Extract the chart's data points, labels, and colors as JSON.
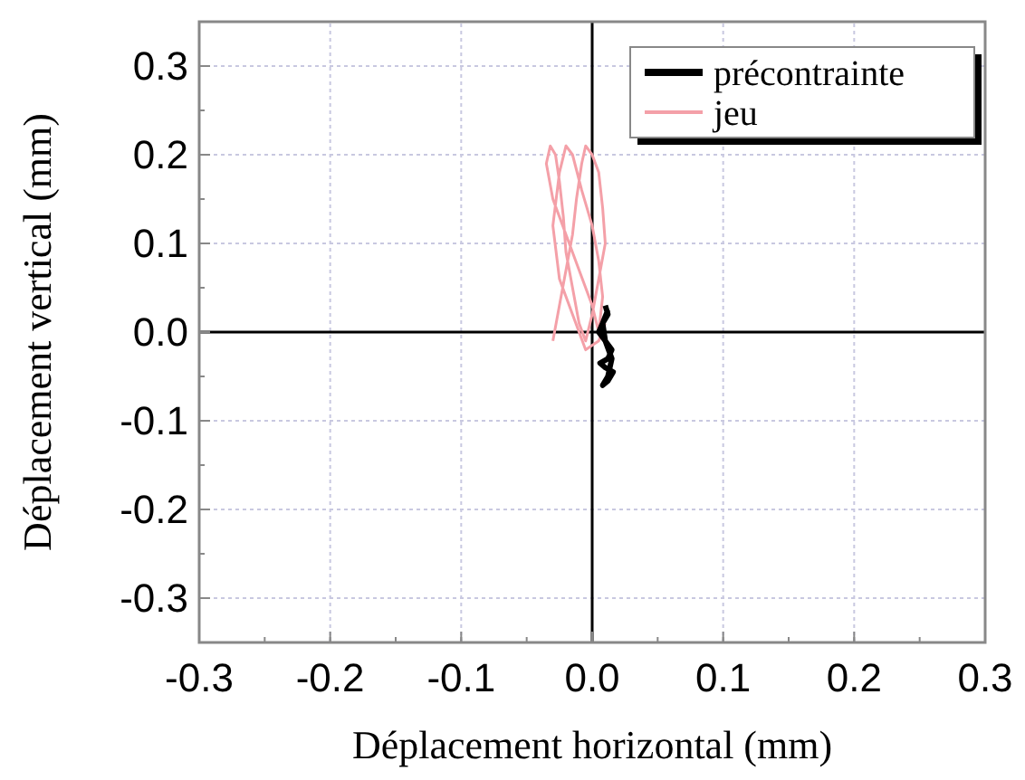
{
  "chart_data": {
    "type": "line",
    "xlabel": "Déplacement horizontal (mm)",
    "ylabel": "Déplacement vertical (mm)",
    "xlim": [
      -0.3,
      0.3
    ],
    "ylim": [
      -0.35,
      0.35
    ],
    "xticks": [
      {
        "value": -0.3,
        "label": "-0.3"
      },
      {
        "value": -0.2,
        "label": "-0.2"
      },
      {
        "value": -0.1,
        "label": "-0.1"
      },
      {
        "value": 0,
        "label": "0.0"
      },
      {
        "value": 0.1,
        "label": "0.1"
      },
      {
        "value": 0.2,
        "label": "0.2"
      },
      {
        "value": 0.3,
        "label": "0.3"
      }
    ],
    "yticks": [
      {
        "value": -0.3,
        "label": "-0.3"
      },
      {
        "value": -0.2,
        "label": "-0.2"
      },
      {
        "value": -0.1,
        "label": "-0.1"
      },
      {
        "value": 0,
        "label": "0.0"
      },
      {
        "value": 0.1,
        "label": "0.1"
      },
      {
        "value": 0.2,
        "label": "0.2"
      },
      {
        "value": 0.3,
        "label": "0.3"
      }
    ],
    "grid": true,
    "legend": "top right",
    "marker": "none",
    "line_style": "solid",
    "series": [
      {
        "name": "jeu",
        "color": "#f4a0a8",
        "x": [
          -0.03,
          -0.025,
          -0.02,
          -0.015,
          -0.012,
          -0.008,
          -0.005,
          0,
          0.005,
          0.008,
          0.01,
          0.005,
          0,
          -0.005,
          -0.01,
          -0.015,
          -0.02,
          -0.022,
          -0.025,
          -0.028,
          -0.032,
          -0.035,
          -0.03,
          -0.02,
          -0.01,
          0,
          0.005,
          0.008,
          0.005,
          0,
          -0.008,
          -0.015,
          -0.02,
          -0.025,
          -0.03,
          -0.025,
          -0.015,
          -0.005,
          0.005,
          0.01
        ],
        "values": [
          -0.01,
          0.03,
          0.07,
          0.11,
          0.15,
          0.19,
          0.21,
          0.2,
          0.18,
          0.14,
          0.1,
          0.06,
          0.02,
          -0.01,
          0.01,
          0.05,
          0.09,
          0.13,
          0.17,
          0.2,
          0.21,
          0.19,
          0.15,
          0.11,
          0.07,
          0.03,
          0,
          0.04,
          0.08,
          0.12,
          0.16,
          0.2,
          0.21,
          0.18,
          0.12,
          0.06,
          0.02,
          -0.02,
          -0.01,
          0.01
        ]
      },
      {
        "name": "précontrainte",
        "color": "#000000",
        "x": [
          0.01,
          0.012,
          0.008,
          0.005,
          0.01,
          0.015,
          0.012,
          0.006,
          0.01,
          0.016,
          0.012,
          0.008,
          0.012,
          0.015,
          0.01,
          0.008,
          0.012
        ],
        "values": [
          0.03,
          0.02,
          0.01,
          0,
          -0.01,
          -0.02,
          -0.03,
          -0.035,
          -0.04,
          -0.045,
          -0.055,
          -0.06,
          -0.05,
          -0.03,
          -0.01,
          0.01,
          0.025
        ]
      }
    ]
  }
}
